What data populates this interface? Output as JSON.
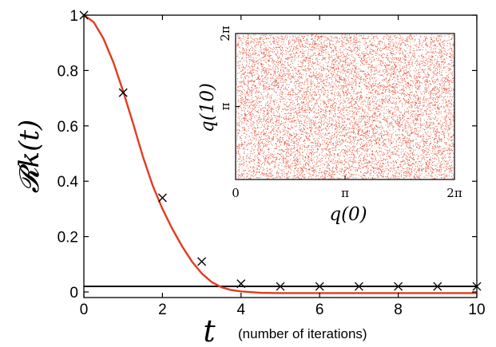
{
  "chart_data": [
    {
      "type": "line",
      "xlabel": "t",
      "xlabel_note": "(number of iterations)",
      "ylabel": "𝓡k(t)",
      "xlim": [
        0,
        10
      ],
      "ylim": [
        0,
        1
      ],
      "x_ticks": [
        "0",
        "2",
        "4",
        "6",
        "8",
        "10"
      ],
      "y_ticks": [
        "0",
        "0.2",
        "0.4",
        "0.6",
        "0.8",
        "1"
      ],
      "grid": false,
      "series": [
        {
          "kind": "curve",
          "color": "#e03c1f",
          "x": [
            0,
            0.25,
            0.5,
            0.75,
            1,
            1.25,
            1.5,
            1.75,
            2,
            2.25,
            2.5,
            2.75,
            3,
            3.25,
            3.5,
            3.75,
            4,
            4.5,
            5,
            6,
            7,
            8,
            9,
            10
          ],
          "y": [
            1.0,
            0.975,
            0.915,
            0.83,
            0.725,
            0.61,
            0.49,
            0.385,
            0.3,
            0.228,
            0.165,
            0.11,
            0.067,
            0.036,
            0.017,
            0.007,
            0.002,
            -0.003,
            -0.004,
            -0.004,
            -0.004,
            -0.004,
            -0.004,
            -0.004
          ]
        },
        {
          "kind": "markers",
          "marker": "x",
          "color": "#000000",
          "x": [
            0,
            1,
            2,
            3,
            4,
            5,
            6,
            7,
            8,
            9,
            10
          ],
          "y": [
            1.0,
            0.72,
            0.34,
            0.11,
            0.03,
            0.02,
            0.02,
            0.02,
            0.02,
            0.02,
            0.02
          ]
        },
        {
          "kind": "hline",
          "color": "#000000",
          "y": 0.02
        }
      ]
    },
    {
      "type": "scatter",
      "role": "inset",
      "xlabel": "q(0)",
      "ylabel": "q(10)",
      "x_ticks": [
        "0",
        "π",
        "2π"
      ],
      "y_ticks": [
        "π",
        "2π"
      ],
      "xlim": [
        0,
        6.2832
      ],
      "ylim": [
        0,
        6.2832
      ],
      "point_color": "#e03c1f",
      "distribution": "uniform",
      "description_points": "dense uniform cloud of points filling the square"
    }
  ]
}
